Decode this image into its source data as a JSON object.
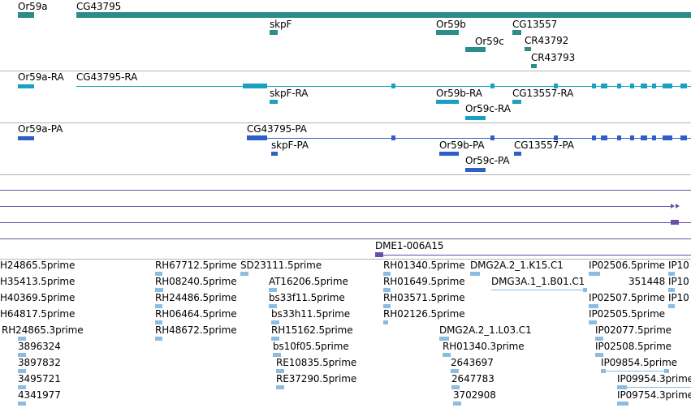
{
  "colors": {
    "gene": "#2b8c8a",
    "transcript": "#1aa0c0",
    "protein": "#2e5fc8",
    "purple": "#6a4fa8",
    "est": "#8cbde0",
    "separator": "#b4b4b4"
  },
  "tracks": {
    "genes": {
      "labels": [
        "Or59a",
        "CG43795",
        "skpF",
        "Or59b",
        "CG13557",
        "Or59c",
        "CR43792",
        "CR43793"
      ]
    },
    "transcripts": {
      "labels": [
        "Or59a-RA",
        "CG43795-RA",
        "skpF-RA",
        "Or59b-RA",
        "CG13557-RA",
        "Or59c-RA"
      ]
    },
    "proteins": {
      "labels": [
        "Or59a-PA",
        "CG43795-PA",
        "skpF-PA",
        "Or59b-PA",
        "CG13557-PA",
        "Or59c-PA"
      ]
    },
    "clones": {
      "labels": [
        "DME1-006A15"
      ]
    },
    "ests": {
      "labels": [
        "H24865.5prime",
        "RH67712.5prime",
        "SD23111.5prime",
        "RH01340.5prime",
        "DMG2A.2_1.K15.C1",
        "IP02506.5prime",
        "IP10",
        "H35413.5prime",
        "RH08240.5prime",
        "AT16206.5prime",
        "RH01649.5prime",
        "DMG3A.1_1.B01.C1",
        "351448",
        "IP10",
        "H40369.5prime",
        "RH24486.5prime",
        "bs33f11.5prime",
        "RH03571.5prime",
        "IP02507.5prime",
        "IP10",
        "H64817.5prime",
        "RH06464.5prime",
        "bs33h11.5prime",
        "RH02126.5prime",
        "IP02505.5prime",
        "RH24865.3prime",
        "RH48672.5prime",
        "RH15162.5prime",
        "DMG2A.2_1.L03.C1",
        "IP02077.5prime",
        "3896324",
        "bs10f05.5prime",
        "RH01340.3prime",
        "IP02508.5prime",
        "3897832",
        "RE10835.5prime",
        "2643697",
        "IP09854.5prime",
        "3495721",
        "RE37290.5prime",
        "2647783",
        "IP09954.3prime",
        "4341977",
        "3702908",
        "IP09754.3prime"
      ]
    }
  }
}
